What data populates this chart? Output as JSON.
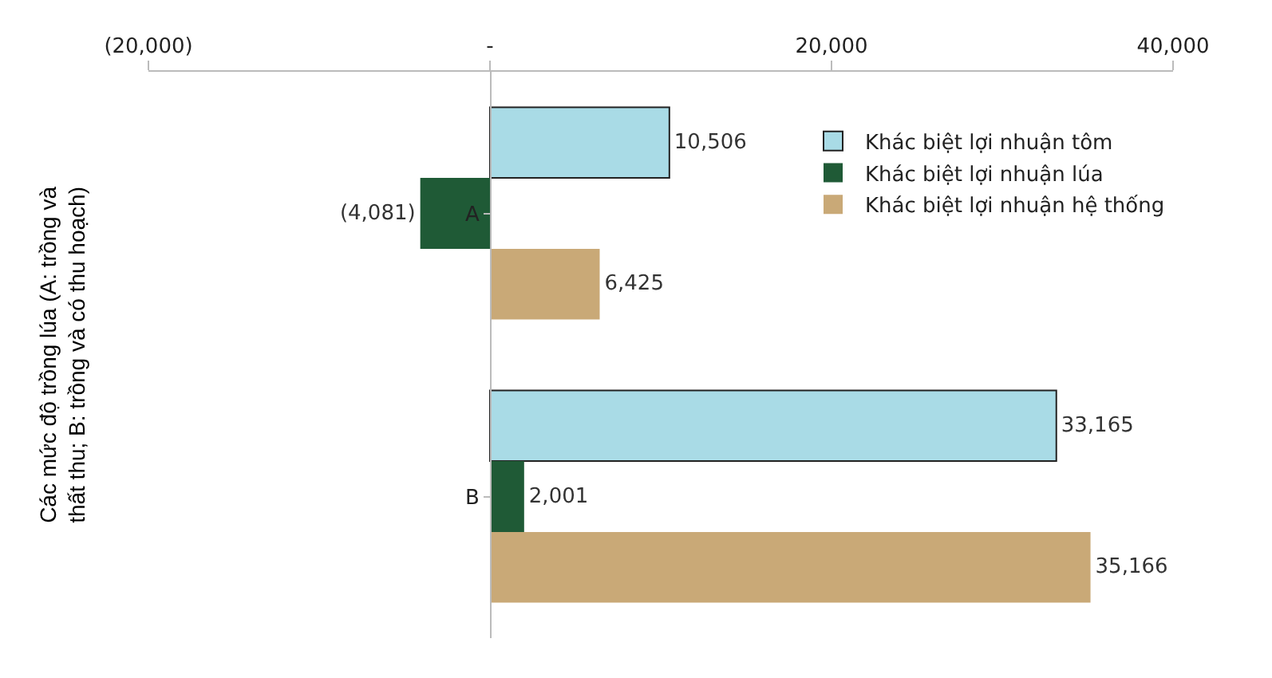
{
  "chart_data": {
    "type": "bar",
    "orientation": "horizontal",
    "ylabel": "Các mức độ trồng lúa (A: trồng và thất thu; B: trồng và có thu hoạch)",
    "categories": [
      "A",
      "B"
    ],
    "series": [
      {
        "name": "Khác biệt lợi nhuận tôm",
        "color": "#a9dbe6",
        "values": [
          10506,
          33165
        ],
        "value_labels": [
          "10,506",
          "33,165"
        ]
      },
      {
        "name": "Khác biệt lợi nhuận lúa",
        "color": "#1f5a36",
        "values": [
          -4081,
          2001
        ],
        "value_labels": [
          "(4,081)",
          "2,001"
        ]
      },
      {
        "name": "Khác biệt lợi nhuận hệ thống",
        "color": "#c9a977",
        "values": [
          6425,
          35166
        ],
        "value_labels": [
          "6,425",
          "35,166"
        ]
      }
    ],
    "xlim": [
      -20000,
      40000
    ],
    "xticks": [
      {
        "value": -20000,
        "label": "(20,000)"
      },
      {
        "value": 0,
        "label": "-"
      },
      {
        "value": 20000,
        "label": "20,000"
      },
      {
        "value": 40000,
        "label": "40,000"
      }
    ],
    "legend": "right"
  }
}
